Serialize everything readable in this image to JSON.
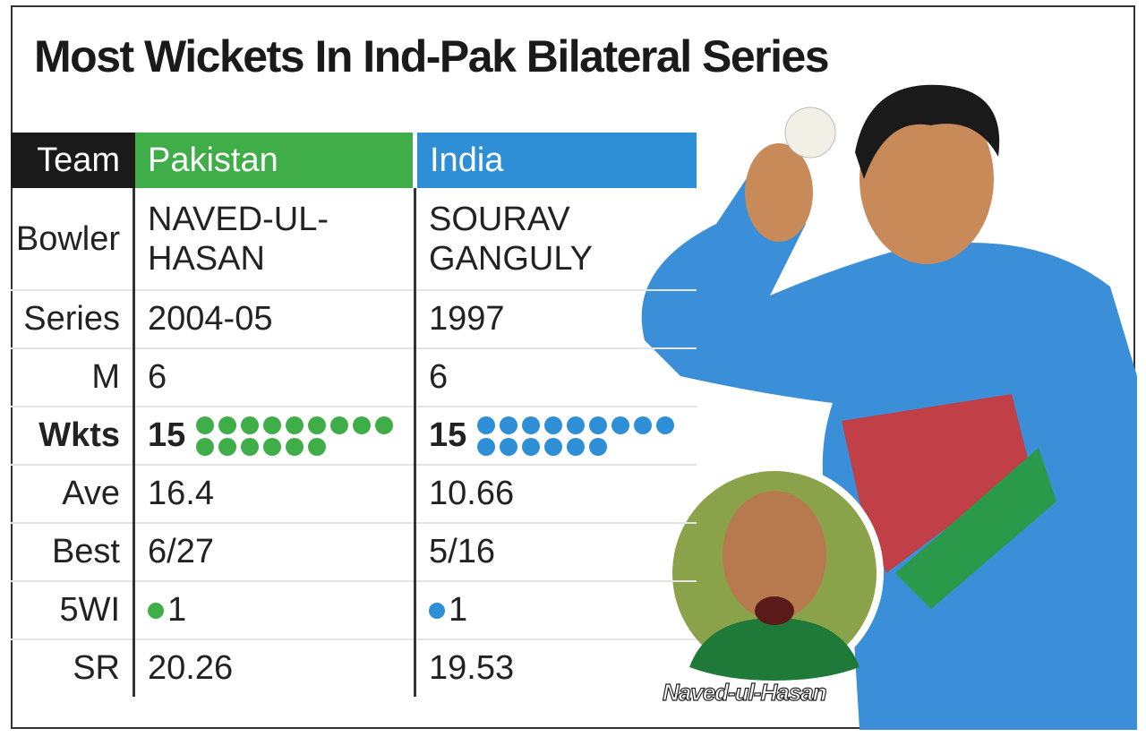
{
  "title": "Most Wickets In Ind-Pak Bilateral Series",
  "table": {
    "header": [
      "Team",
      "Pakistan",
      "India"
    ],
    "rows": [
      [
        "Bowler",
        "NAVED-UL-HASAN",
        "SOURAV GANGULY"
      ],
      [
        "Series",
        "2004-05",
        1997
      ],
      [
        "M",
        6,
        6
      ],
      [
        "Wkts",
        15,
        15
      ],
      [
        "Ave",
        16.4,
        10.66
      ],
      [
        "Best",
        "6/27",
        "5/16"
      ],
      [
        "5WI",
        1,
        1
      ],
      [
        "SR",
        20.26,
        19.53
      ]
    ]
  },
  "caption": "Naved-ul-Hasan"
}
